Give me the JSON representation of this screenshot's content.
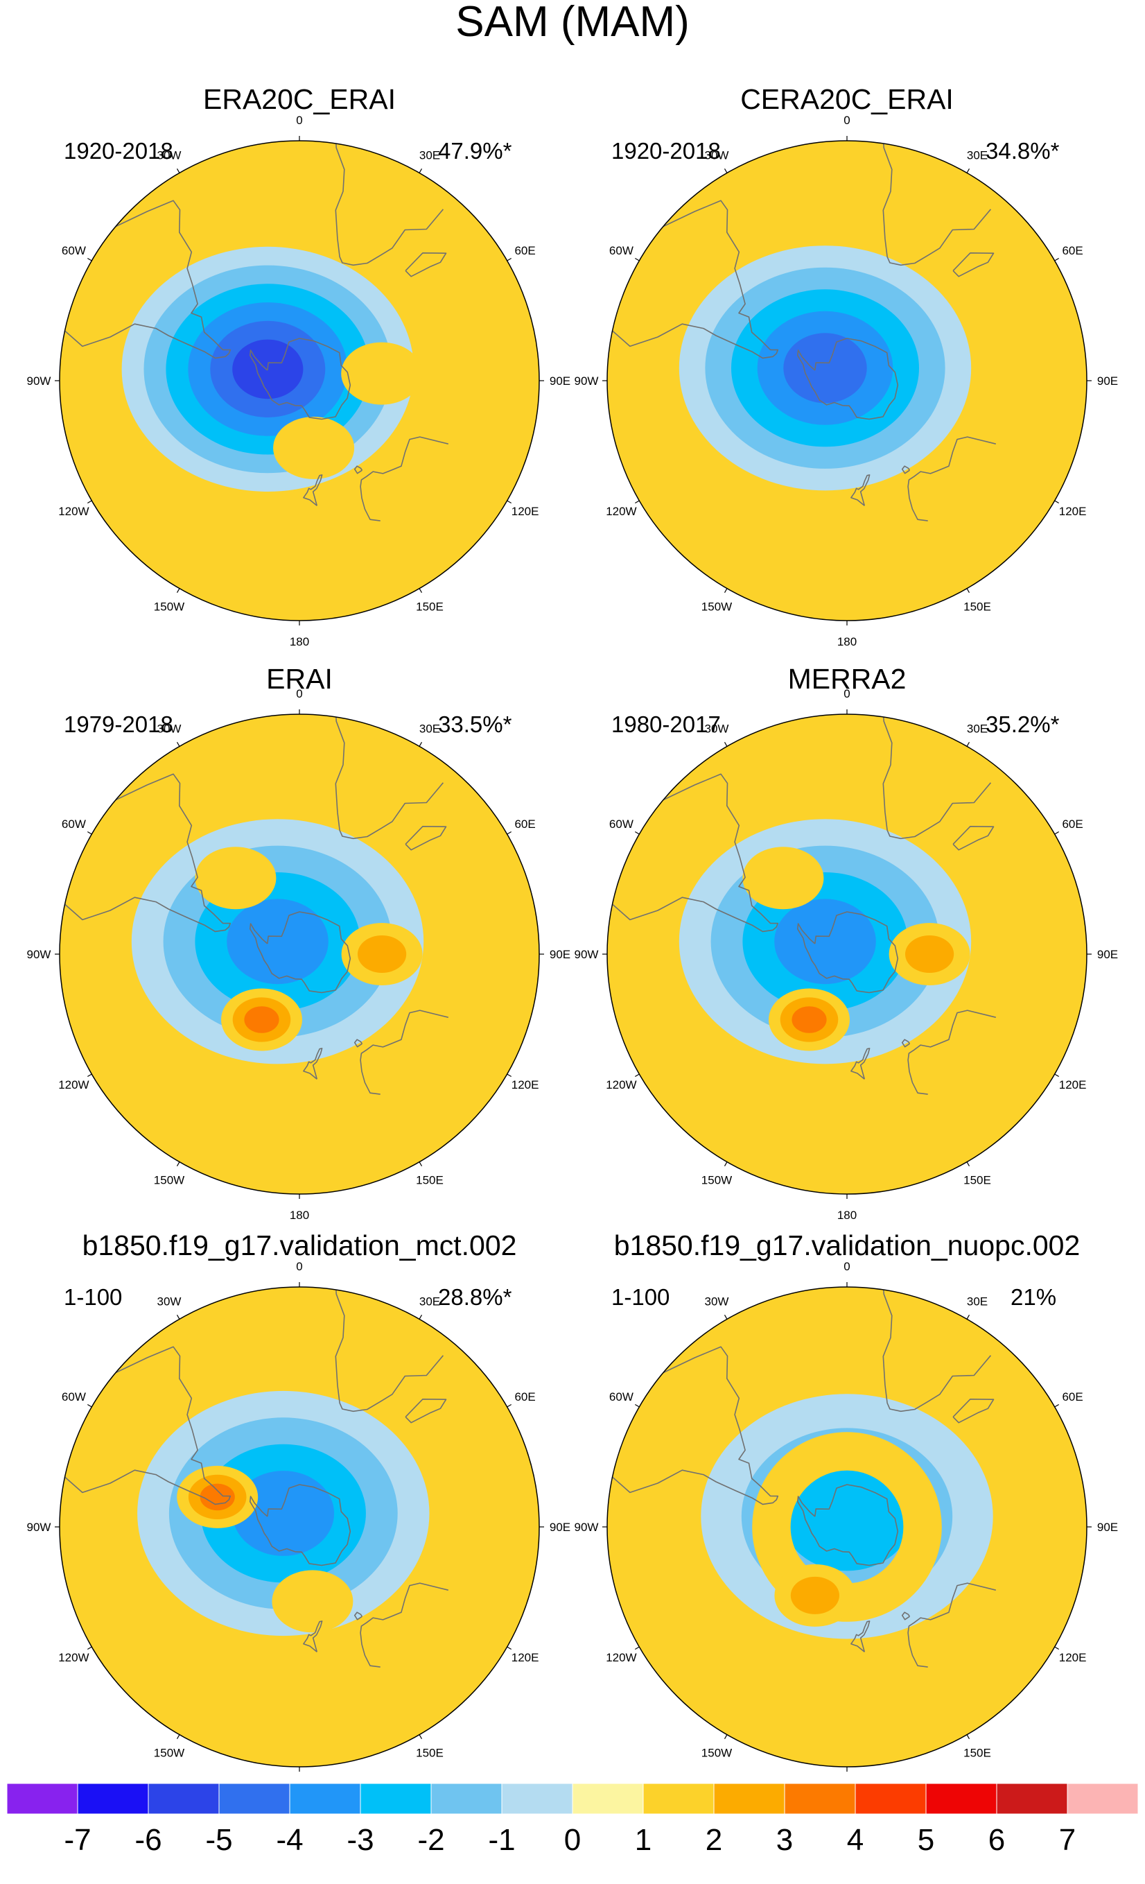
{
  "chart_data": {
    "type": "heatmap",
    "projection": "south-polar-stereographic",
    "title": "SAM (MAM)",
    "longitude_labels": [
      "0",
      "30E",
      "60E",
      "90E",
      "120E",
      "150E",
      "180",
      "150W",
      "120W",
      "90W",
      "60W",
      "30W"
    ],
    "panels": [
      {
        "title": "ERA20C_ERAI",
        "period": "1920-2018",
        "variance_explained": "47.9%*",
        "features": [
          {
            "kind": "low",
            "lon": -70,
            "lat": -74,
            "value": -6,
            "levels": [
              -1,
              -2,
              -3,
              -4,
              -5,
              -6
            ]
          },
          {
            "kind": "high",
            "lon": 85,
            "lat": -52,
            "value": 1
          },
          {
            "kind": "high",
            "lon": 168,
            "lat": -58,
            "value": 1
          }
        ]
      },
      {
        "title": "CERA20C_ERAI",
        "period": "1920-2018",
        "variance_explained": "34.8%*",
        "features": [
          {
            "kind": "low",
            "lon": -60,
            "lat": -78,
            "value": -5,
            "levels": [
              -1,
              -2,
              -3,
              -4,
              -5
            ]
          }
        ]
      },
      {
        "title": "ERAI",
        "period": "1979-2018",
        "variance_explained": "33.5%*",
        "features": [
          {
            "kind": "low",
            "lon": -60,
            "lat": -78,
            "value": -4,
            "levels": [
              -1,
              -2,
              -3,
              -4
            ]
          },
          {
            "kind": "high",
            "lon": -40,
            "lat": -45,
            "value": 1
          },
          {
            "kind": "high",
            "lon": 90,
            "lat": -52,
            "value": 2
          },
          {
            "kind": "high",
            "lon": -150,
            "lat": -55,
            "value": 3
          }
        ]
      },
      {
        "title": "MERRA2",
        "period": "1980-2017",
        "variance_explained": "35.2%*",
        "features": [
          {
            "kind": "low",
            "lon": -60,
            "lat": -78,
            "value": -4,
            "levels": [
              -1,
              -2,
              -3,
              -4
            ]
          },
          {
            "kind": "high",
            "lon": -40,
            "lat": -45,
            "value": 1
          },
          {
            "kind": "high",
            "lon": 90,
            "lat": -52,
            "value": 2
          },
          {
            "kind": "high",
            "lon": -150,
            "lat": -55,
            "value": 3
          }
        ]
      },
      {
        "title": "b1850.f19_g17.validation_mct.002",
        "period": "1-100",
        "variance_explained": "28.8%*",
        "features": [
          {
            "kind": "low",
            "lon": -50,
            "lat": -80,
            "value": -4,
            "levels": [
              -1,
              -2,
              -3,
              -4
            ]
          },
          {
            "kind": "high",
            "lon": -70,
            "lat": -50,
            "value": 3
          },
          {
            "kind": "high",
            "lon": 170,
            "lat": -55,
            "value": 1
          }
        ]
      },
      {
        "title": "b1850.f19_g17.validation_nuopc.002",
        "period": "1-100",
        "variance_explained": "21%",
        "features": [
          {
            "kind": "low",
            "lon": 0,
            "lat": -85,
            "value": -3,
            "levels": [
              -1,
              -2,
              -3
            ]
          },
          {
            "kind": "ring",
            "lat": -55,
            "value": 1
          },
          {
            "kind": "high",
            "lon": -155,
            "lat": -55,
            "value": 2
          }
        ]
      }
    ],
    "colorbar": {
      "labels": [
        "-7",
        "-6",
        "-5",
        "-4",
        "-3",
        "-2",
        "-1",
        "0",
        "1",
        "2",
        "3",
        "4",
        "5",
        "6",
        "7"
      ],
      "colors": [
        "#8822ee",
        "#1a10f5",
        "#2c44e8",
        "#3070ee",
        "#2196f8",
        "#00c0f8",
        "#6fc4f0",
        "#b4dcf1",
        "#fcf5a0",
        "#fcd22a",
        "#fcab00",
        "#fc7a00",
        "#fc3c00",
        "#ee0505",
        "#cc1a1a",
        "#fcb4b4"
      ]
    },
    "colors": {
      "land_outline": "#707070",
      "neutral_fill": "#fcf5a0"
    }
  }
}
